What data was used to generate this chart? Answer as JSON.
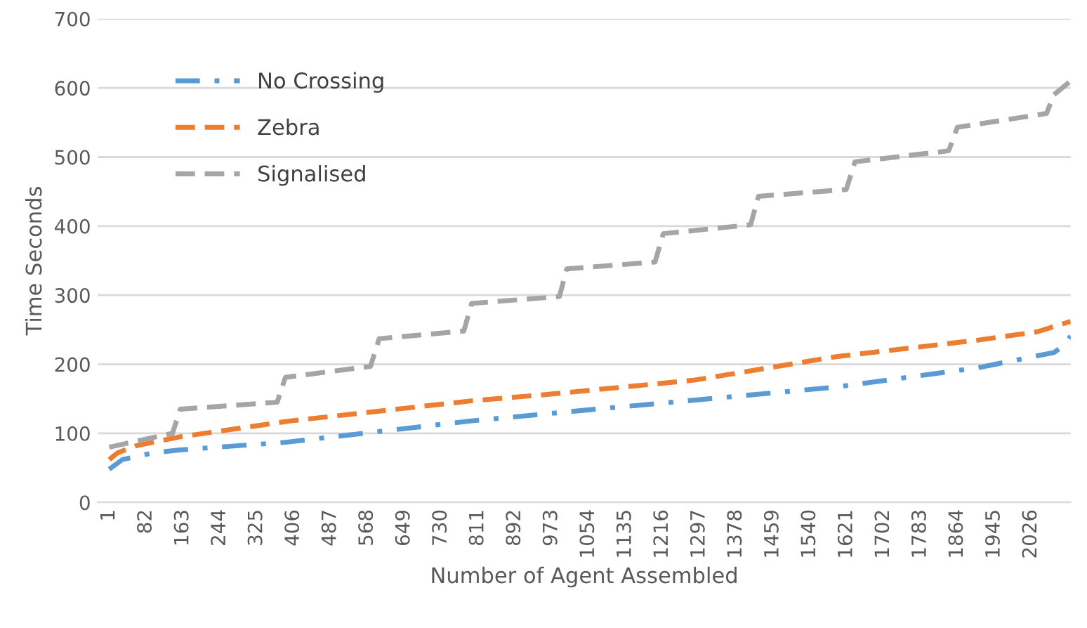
{
  "chart_data": {
    "type": "line",
    "xlabel": "Number of Agent Assembled",
    "ylabel": "Time Seconds",
    "xlim": [
      -24,
      2113
    ],
    "xticks": [
      1,
      82,
      163,
      244,
      325,
      406,
      487,
      568,
      649,
      730,
      811,
      892,
      973,
      1054,
      1135,
      1216,
      1297,
      1378,
      1459,
      1540,
      1621,
      1702,
      1783,
      1864,
      1945,
      2026
    ],
    "ylim": [
      0,
      700
    ],
    "yticks": [
      0,
      100,
      200,
      300,
      400,
      500,
      600,
      700
    ],
    "grid": "y",
    "legend": "top left",
    "series": [
      {
        "name": "No Crossing",
        "color": "#5b9bd5",
        "line_style": "dashdot",
        "x": [
          1,
          30,
          100,
          157,
          388,
          797,
          1006,
          1598,
          1910,
          2076,
          2100,
          2113
        ],
        "values": [
          48,
          62,
          72,
          76,
          87,
          118,
          131,
          167,
          195,
          217,
          228,
          241
        ]
      },
      {
        "name": "Zebra",
        "color": "#ed7d31",
        "line_style": "dashed",
        "x": [
          1,
          20,
          60,
          157,
          400,
          797,
          975,
          1286,
          1598,
          1910,
          2040,
          2113
        ],
        "values": [
          62,
          72,
          82,
          95,
          118,
          147,
          157,
          177,
          211,
          235,
          247,
          262
        ]
      },
      {
        "name": "Signalised",
        "color": "#a5a5a5",
        "line_style": "dashed",
        "x": [
          1,
          140,
          157,
          370,
          388,
          575,
          594,
          780,
          797,
          990,
          1006,
          1200,
          1218,
          1410,
          1427,
          1620,
          1639,
          1845,
          1864,
          2060,
          2076,
          2113
        ],
        "values": [
          80,
          100,
          135,
          145,
          181,
          197,
          237,
          248,
          288,
          298,
          338,
          348,
          389,
          402,
          443,
          453,
          493,
          509,
          543,
          563,
          590,
          610
        ]
      }
    ]
  }
}
